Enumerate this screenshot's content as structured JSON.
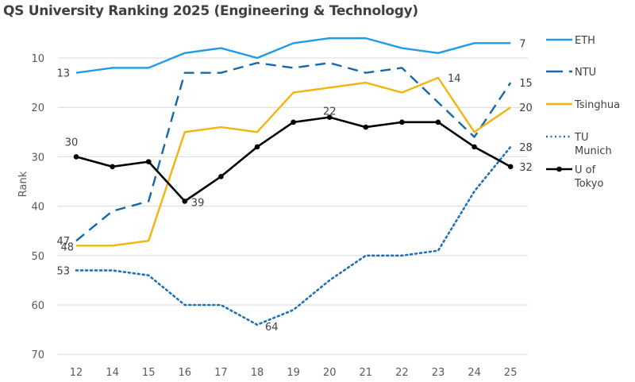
{
  "chart_data": {
    "type": "line",
    "title": "QS University Ranking 2025 (Engineering & Technology)",
    "xlabel": "",
    "ylabel": "Rank",
    "categories": [
      "12",
      "14",
      "15",
      "16",
      "17",
      "18",
      "19",
      "20",
      "21",
      "22",
      "23",
      "24",
      "25"
    ],
    "yticks": [
      10,
      20,
      30,
      40,
      50,
      60,
      70
    ],
    "ylim": [
      5,
      70
    ],
    "y_inverted": true,
    "grid": true,
    "legend_position": "right",
    "series": [
      {
        "name": "ETH",
        "color": "#1f9be9",
        "style": "solid",
        "marker": false,
        "values": [
          13,
          12,
          12,
          9,
          8,
          10,
          7,
          6,
          6,
          8,
          9,
          7,
          7
        ],
        "labels": {
          "0": "13",
          "12": "7"
        }
      },
      {
        "name": "NTU",
        "color": "#1667ab",
        "style": "dashed",
        "marker": false,
        "values": [
          47,
          41,
          39,
          13,
          13,
          11,
          12,
          11,
          13,
          12,
          19,
          26,
          15
        ],
        "labels": {
          "0": "47",
          "12": "15"
        }
      },
      {
        "name": "Tsinghua",
        "color": "#f4b40e",
        "style": "solid",
        "marker": false,
        "values": [
          48,
          48,
          47,
          25,
          24,
          25,
          17,
          16,
          15,
          17,
          14,
          25,
          20
        ],
        "labels": {
          "0": "48",
          "10": "14",
          "12": "20"
        }
      },
      {
        "name": "TU Munich",
        "color": "#1e70b8",
        "style": "dotted",
        "marker": false,
        "values": [
          53,
          53,
          54,
          60,
          60,
          64,
          61,
          55,
          50,
          50,
          49,
          37,
          28
        ],
        "labels": {
          "0": "53",
          "5": "64",
          "12": "28"
        }
      },
      {
        "name": "U of Tokyo",
        "color": "#000000",
        "style": "solid",
        "marker": true,
        "values": [
          30,
          32,
          31,
          39,
          34,
          28,
          23,
          22,
          24,
          23,
          23,
          28,
          32
        ],
        "labels": {
          "0": "30",
          "3": "39",
          "7": "22",
          "12": "32"
        }
      }
    ]
  },
  "legend": {
    "items": [
      {
        "lines": [
          "ETH"
        ]
      },
      {
        "lines": [
          "NTU"
        ]
      },
      {
        "lines": [
          "Tsinghua"
        ]
      },
      {
        "lines": [
          "TU",
          "Munich"
        ]
      },
      {
        "lines": [
          "U of",
          "Tokyo"
        ]
      }
    ]
  }
}
